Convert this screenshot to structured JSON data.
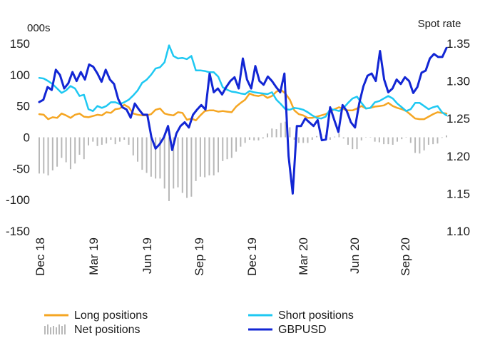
{
  "chart_data": {
    "type": "line",
    "left_axis_unit": "000s",
    "right_axis_unit": "Spot rate",
    "y_left": {
      "min": -150,
      "max": 150,
      "ticks": [
        150,
        100,
        50,
        0,
        -50,
        -100,
        -150
      ]
    },
    "y_right": {
      "min": 1.1,
      "max": 1.35,
      "ticks": [
        "1.35",
        "1.30",
        "1.25",
        "1.20",
        "1.15",
        "1.10"
      ]
    },
    "x_tick_labels": [
      "Dec 18",
      "Mar 19",
      "Jun 19",
      "Sep 19",
      "Dec 19",
      "Mar 20",
      "Jun 20",
      "Sep 20"
    ],
    "grid": false,
    "legend_position": "bottom",
    "series": [
      {
        "name": "Long positions",
        "axis": "left",
        "type": "line",
        "color": "#f5a623",
        "values": [
          37,
          36,
          29,
          32,
          31,
          38,
          35,
          31,
          36,
          38,
          33,
          32,
          34,
          36,
          35,
          40,
          39,
          45,
          46,
          52,
          48,
          38,
          36,
          35,
          35,
          37,
          44,
          46,
          38,
          36,
          35,
          40,
          39,
          28,
          30,
          27,
          35,
          42,
          43,
          43,
          41,
          42,
          41,
          40,
          49,
          55,
          60,
          70,
          67,
          66,
          68,
          63,
          66,
          73,
          76,
          70,
          60,
          43,
          37,
          35,
          31,
          31,
          33,
          35,
          37,
          41,
          45,
          48,
          45,
          43,
          43,
          46,
          50,
          46,
          47,
          49,
          50,
          51,
          55,
          50,
          47,
          45,
          42,
          36,
          30,
          29,
          29,
          33,
          37,
          40,
          39,
          38
        ]
      },
      {
        "name": "Short positions",
        "axis": "left",
        "type": "line",
        "color": "#1ec8f2",
        "values": [
          95,
          94,
          90,
          85,
          78,
          71,
          75,
          82,
          78,
          66,
          68,
          45,
          42,
          50,
          47,
          50,
          56,
          56,
          53,
          56,
          60,
          67,
          75,
          87,
          92,
          100,
          110,
          112,
          120,
          147,
          130,
          126,
          127,
          125,
          130,
          107,
          107,
          106,
          104,
          104,
          97,
          80,
          76,
          73,
          72,
          70,
          69,
          74,
          72,
          71,
          70,
          69,
          72,
          60,
          53,
          45,
          44,
          47,
          46,
          44,
          40,
          35,
          31,
          30,
          33,
          45,
          44,
          42,
          47,
          55,
          62,
          65,
          55,
          46,
          47,
          56,
          58,
          62,
          66,
          62,
          54,
          48,
          42,
          45,
          55,
          55,
          50,
          45,
          48,
          50,
          40,
          35
        ]
      },
      {
        "name": "Net positions",
        "axis": "left",
        "type": "bar",
        "color": "#b8b8b8",
        "values": [
          -58,
          -58,
          -61,
          -53,
          -47,
          -33,
          -40,
          -51,
          -42,
          -28,
          -35,
          -13,
          -7,
          -14,
          -12,
          -10,
          -4,
          -11,
          -7,
          -4,
          -12,
          -29,
          -39,
          -52,
          -57,
          -63,
          -66,
          -66,
          -82,
          -102,
          -82,
          -80,
          -89,
          -97,
          -95,
          -70,
          -63,
          -64,
          -61,
          -61,
          -56,
          -38,
          -35,
          -33,
          -23,
          -15,
          -9,
          -4,
          -5,
          -5,
          -2,
          6,
          14,
          13,
          23,
          25,
          16,
          -4,
          -9,
          -9,
          -9,
          -4,
          2,
          5,
          4,
          -4,
          1,
          6,
          -2,
          -12,
          -19,
          -19,
          -5,
          0,
          0,
          -7,
          -8,
          -11,
          -11,
          -12,
          -7,
          -3,
          0,
          -9,
          -25,
          -26,
          -21,
          -12,
          -11,
          -10,
          -1,
          3
        ]
      },
      {
        "name": "GBPUSD",
        "axis": "right",
        "type": "line",
        "color": "#1226d4",
        "values": [
          1.272,
          1.275,
          1.292,
          1.288,
          1.315,
          1.308,
          1.29,
          1.297,
          1.312,
          1.3,
          1.312,
          1.302,
          1.322,
          1.319,
          1.31,
          1.299,
          1.315,
          1.302,
          1.296,
          1.276,
          1.265,
          1.262,
          1.251,
          1.27,
          1.262,
          1.255,
          1.255,
          1.225,
          1.21,
          1.216,
          1.225,
          1.24,
          1.208,
          1.23,
          1.24,
          1.245,
          1.238,
          1.255,
          1.262,
          1.268,
          1.262,
          1.31,
          1.285,
          1.29,
          1.282,
          1.292,
          1.3,
          1.305,
          1.29,
          1.33,
          1.302,
          1.29,
          1.32,
          1.3,
          1.295,
          1.306,
          1.3,
          1.292,
          1.285,
          1.31,
          1.2,
          1.15,
          1.24,
          1.24,
          1.25,
          1.245,
          1.24,
          1.248,
          1.221,
          1.222,
          1.265,
          1.248,
          1.232,
          1.268,
          1.26,
          1.245,
          1.238,
          1.27,
          1.293,
          1.307,
          1.31,
          1.3,
          1.34,
          1.302,
          1.285,
          1.29,
          1.302,
          1.296,
          1.305,
          1.3,
          1.284,
          1.292,
          1.311,
          1.314,
          1.33,
          1.336,
          1.332,
          1.332,
          1.344
        ]
      }
    ]
  }
}
